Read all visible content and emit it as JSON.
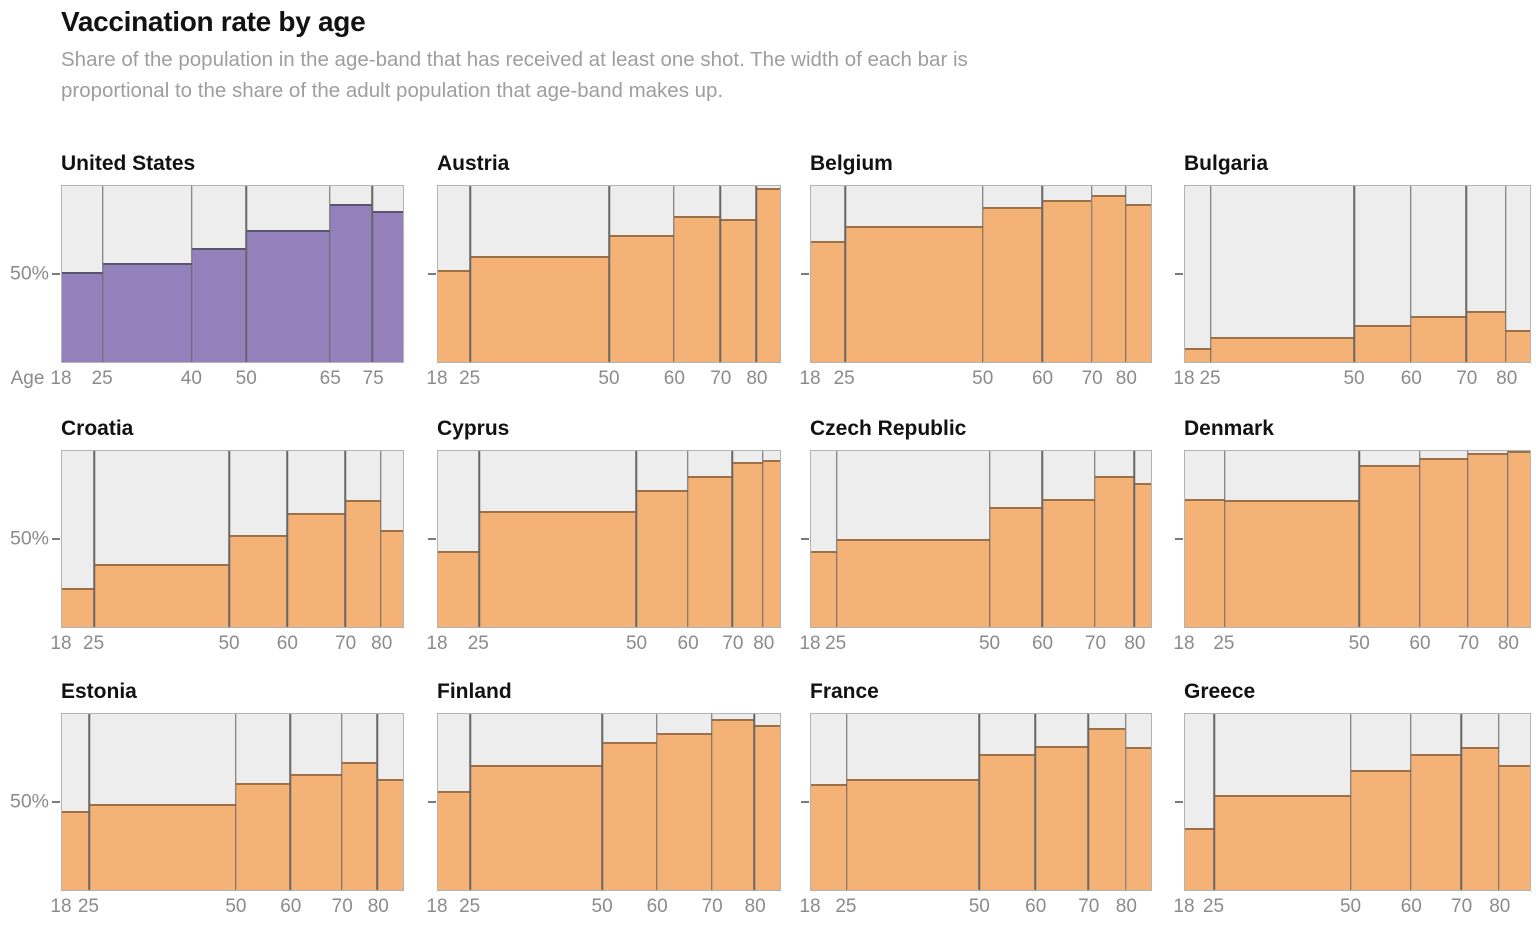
{
  "header": {
    "title": "Vaccination rate by age",
    "subtitle": "Share of the population in the age-band that has received at least one shot. The width of each bar is proportional to the share of the adult population that age-band makes up."
  },
  "colors": {
    "us_bar": "#9480bb",
    "us_bar_edge": "#5a536e",
    "eu_bar": "#f5b276",
    "eu_bar_edge": "#9c7148",
    "panel_background": "#ededed",
    "plot_border": "#b3b3b3",
    "band_separator": "#666666",
    "axis_text": "#8b8b8b",
    "title_text": "#121212",
    "subtitle_text": "#9e9e9e"
  },
  "chart_data": {
    "type": "mekko",
    "title": "Vaccination rate by age",
    "subtitle": "Share of the population in the age-band that has received at least one shot. The width of each bar is proportional to the share of the adult population that age-band makes up.",
    "y_axis": {
      "min": 0,
      "max": 100,
      "tick_value": 50,
      "tick_label": "50%"
    },
    "x_axis_title": "Age",
    "legend": "none",
    "grid": "off",
    "panels": [
      {
        "country": "United States",
        "color": "#9480bb",
        "edge_color": "#5a536e",
        "x_prefix": "Age",
        "show_y_label": true,
        "age_bands": [
          "18-25",
          "25-40",
          "40-50",
          "50-65",
          "65-75",
          "75+"
        ],
        "tick_labels": [
          "18",
          "25",
          "40",
          "50",
          "65",
          "75"
        ],
        "population_share_pct": [
          12,
          26,
          16,
          24.5,
          12.5,
          9
        ],
        "vaccination_rate_pct": [
          51,
          56,
          65,
          75,
          90,
          86
        ]
      },
      {
        "country": "Austria",
        "color": "#f5b276",
        "edge_color": "#9c7148",
        "x_prefix": null,
        "show_y_label": false,
        "age_bands": [
          "18-25",
          "25-50",
          "50-60",
          "60-70",
          "70-80",
          "80+"
        ],
        "tick_labels": [
          "18",
          "25",
          "50",
          "60",
          "70",
          "80"
        ],
        "population_share_pct": [
          9.5,
          40.5,
          19,
          13.5,
          10.5,
          7
        ],
        "vaccination_rate_pct": [
          52,
          60,
          72,
          83,
          81,
          99
        ]
      },
      {
        "country": "Belgium",
        "color": "#f5b276",
        "edge_color": "#9c7148",
        "x_prefix": null,
        "show_y_label": false,
        "age_bands": [
          "18-25",
          "25-50",
          "50-60",
          "60-70",
          "70-80",
          "80+"
        ],
        "tick_labels": [
          "18",
          "25",
          "50",
          "60",
          "70",
          "80"
        ],
        "population_share_pct": [
          10,
          40.5,
          17.5,
          14.5,
          10,
          7.5
        ],
        "vaccination_rate_pct": [
          69,
          77,
          88,
          92,
          95,
          90
        ]
      },
      {
        "country": "Bulgaria",
        "color": "#f5b276",
        "edge_color": "#9c7148",
        "x_prefix": null,
        "show_y_label": false,
        "age_bands": [
          "18-25",
          "25-50",
          "50-60",
          "60-70",
          "70-80",
          "80+"
        ],
        "tick_labels": [
          "18",
          "25",
          "50",
          "60",
          "70",
          "80"
        ],
        "population_share_pct": [
          7.5,
          41.5,
          16.5,
          16,
          11.5,
          7
        ],
        "vaccination_rate_pct": [
          8,
          14,
          21,
          26,
          29,
          18
        ]
      },
      {
        "country": "Croatia",
        "color": "#f5b276",
        "edge_color": "#9c7148",
        "x_prefix": null,
        "show_y_label": true,
        "age_bands": [
          "18-25",
          "25-50",
          "50-60",
          "60-70",
          "70-80",
          "80+"
        ],
        "tick_labels": [
          "18",
          "25",
          "50",
          "60",
          "70",
          "80"
        ],
        "population_share_pct": [
          9.5,
          39.5,
          17,
          17,
          10.5,
          6.5
        ],
        "vaccination_rate_pct": [
          22,
          36,
          52,
          65,
          72,
          55
        ]
      },
      {
        "country": "Cyprus",
        "color": "#f5b276",
        "edge_color": "#9c7148",
        "x_prefix": null,
        "show_y_label": false,
        "age_bands": [
          "18-25",
          "25-50",
          "50-60",
          "60-70",
          "70-80",
          "80+"
        ],
        "tick_labels": [
          "18",
          "25",
          "50",
          "60",
          "70",
          "80"
        ],
        "population_share_pct": [
          12,
          46,
          15,
          13,
          9,
          5
        ],
        "vaccination_rate_pct": [
          43,
          66,
          78,
          86,
          94,
          95
        ]
      },
      {
        "country": "Czech Republic",
        "color": "#f5b276",
        "edge_color": "#9c7148",
        "x_prefix": null,
        "show_y_label": false,
        "age_bands": [
          "18-25",
          "25-50",
          "50-60",
          "60-70",
          "70-80",
          "80+"
        ],
        "tick_labels": [
          "18",
          "25",
          "50",
          "60",
          "70",
          "80"
        ],
        "population_share_pct": [
          7.5,
          45,
          15.5,
          15.5,
          11.5,
          5
        ],
        "vaccination_rate_pct": [
          43,
          50,
          68,
          73,
          86,
          82
        ]
      },
      {
        "country": "Denmark",
        "color": "#f5b276",
        "edge_color": "#9c7148",
        "x_prefix": null,
        "show_y_label": false,
        "age_bands": [
          "18-25",
          "25-50",
          "50-60",
          "60-70",
          "70-80",
          "80+"
        ],
        "tick_labels": [
          "18",
          "25",
          "50",
          "60",
          "70",
          "80"
        ],
        "population_share_pct": [
          11.5,
          39,
          17.5,
          14,
          11.5,
          6.5
        ],
        "vaccination_rate_pct": [
          73,
          72,
          92,
          96,
          99,
          100
        ]
      },
      {
        "country": "Estonia",
        "color": "#f5b276",
        "edge_color": "#9c7148",
        "x_prefix": null,
        "show_y_label": true,
        "age_bands": [
          "18-25",
          "25-50",
          "50-60",
          "60-70",
          "70-80",
          "80+"
        ],
        "tick_labels": [
          "18",
          "25",
          "50",
          "60",
          "70",
          "80"
        ],
        "population_share_pct": [
          8,
          43,
          16,
          15,
          10.5,
          7.5
        ],
        "vaccination_rate_pct": [
          45,
          49,
          61,
          66,
          73,
          63
        ]
      },
      {
        "country": "Finland",
        "color": "#f5b276",
        "edge_color": "#9c7148",
        "x_prefix": null,
        "show_y_label": false,
        "age_bands": [
          "18-25",
          "25-50",
          "50-60",
          "60-70",
          "70-80",
          "80+"
        ],
        "tick_labels": [
          "18",
          "25",
          "50",
          "60",
          "70",
          "80"
        ],
        "population_share_pct": [
          9.5,
          38.5,
          16,
          16,
          12.5,
          7.5
        ],
        "vaccination_rate_pct": [
          56,
          71,
          84,
          89,
          97,
          94
        ]
      },
      {
        "country": "France",
        "color": "#f5b276",
        "edge_color": "#9c7148",
        "x_prefix": null,
        "show_y_label": false,
        "age_bands": [
          "18-25",
          "25-50",
          "50-60",
          "60-70",
          "70-80",
          "80+"
        ],
        "tick_labels": [
          "18",
          "25",
          "50",
          "60",
          "70",
          "80"
        ],
        "population_share_pct": [
          10.5,
          39,
          16.5,
          15.5,
          11,
          7.5
        ],
        "vaccination_rate_pct": [
          60,
          63,
          77,
          82,
          92,
          81
        ]
      },
      {
        "country": "Greece",
        "color": "#f5b276",
        "edge_color": "#9c7148",
        "x_prefix": null,
        "show_y_label": false,
        "age_bands": [
          "18-25",
          "25-50",
          "50-60",
          "60-70",
          "70-80",
          "80+"
        ],
        "tick_labels": [
          "18",
          "25",
          "50",
          "60",
          "70",
          "80"
        ],
        "population_share_pct": [
          8.5,
          39.5,
          17.5,
          14.5,
          11,
          9
        ],
        "vaccination_rate_pct": [
          35,
          54,
          68,
          77,
          81,
          71
        ]
      }
    ]
  }
}
